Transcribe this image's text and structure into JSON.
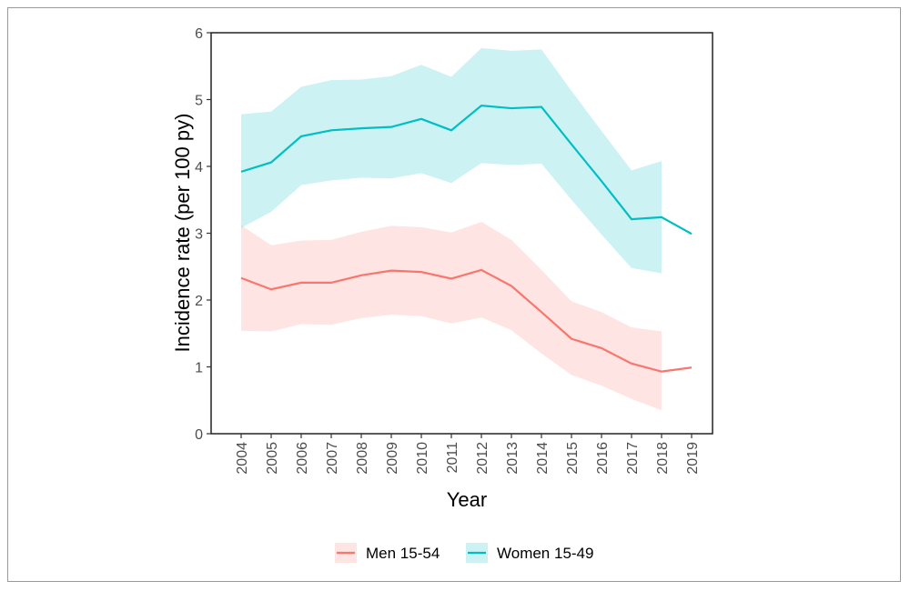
{
  "chart_data": {
    "type": "line",
    "title": "",
    "xlabel": "Year",
    "ylabel": "Incidence rate (per 100 py)",
    "x": [
      2004,
      2005,
      2006,
      2007,
      2008,
      2009,
      2010,
      2011,
      2012,
      2013,
      2014,
      2015,
      2016,
      2017,
      2018,
      2019
    ],
    "xticks": [
      "2004",
      "2005",
      "2006",
      "2007",
      "2008",
      "2009",
      "2010",
      "2011",
      "2012",
      "2013",
      "2014",
      "2015",
      "2016",
      "2017",
      "2018",
      "2019"
    ],
    "yticks": [
      "0",
      "1",
      "2",
      "3",
      "4",
      "5",
      "6"
    ],
    "ylim": [
      0,
      6
    ],
    "grid": false,
    "legend_position": "bottom",
    "series": [
      {
        "name": "Men 15-54",
        "color": "#F8766D",
        "values": [
          2.33,
          2.16,
          2.26,
          2.26,
          2.37,
          2.44,
          2.42,
          2.32,
          2.45,
          2.21,
          1.82,
          1.42,
          1.28,
          1.05,
          0.93,
          0.99
        ],
        "upper": [
          3.12,
          2.82,
          2.89,
          2.9,
          3.02,
          3.11,
          3.09,
          3.01,
          3.17,
          2.9,
          2.45,
          1.98,
          1.82,
          1.59,
          1.53,
          null
        ],
        "lower": [
          1.54,
          1.53,
          1.64,
          1.63,
          1.73,
          1.78,
          1.76,
          1.65,
          1.74,
          1.55,
          1.2,
          0.88,
          0.72,
          0.52,
          0.35,
          null
        ]
      },
      {
        "name": "Women 15-49",
        "color": "#00BFC4",
        "values": [
          3.92,
          4.06,
          4.45,
          4.54,
          4.57,
          4.59,
          4.71,
          4.54,
          4.91,
          4.87,
          4.89,
          4.33,
          3.78,
          3.21,
          3.24,
          2.99
        ],
        "upper": [
          4.78,
          4.82,
          5.19,
          5.29,
          5.3,
          5.35,
          5.52,
          5.34,
          5.77,
          5.73,
          5.75,
          5.13,
          4.53,
          3.94,
          4.08,
          null
        ],
        "lower": [
          3.08,
          3.32,
          3.72,
          3.79,
          3.83,
          3.82,
          3.9,
          3.75,
          4.05,
          4.02,
          4.04,
          3.5,
          2.98,
          2.48,
          2.4,
          null
        ]
      }
    ]
  }
}
